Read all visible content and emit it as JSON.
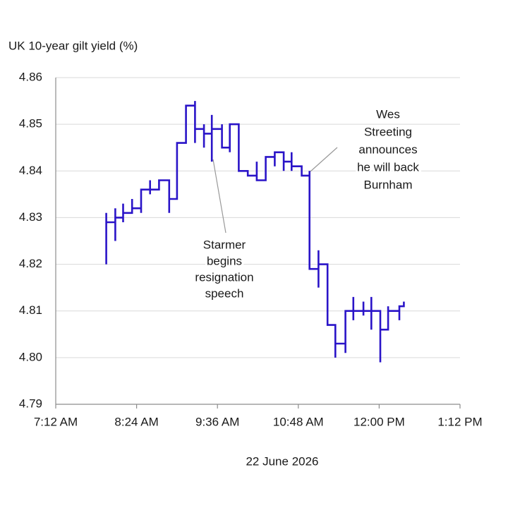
{
  "chart_data": {
    "type": "line",
    "title": "UK 10-year gilt yield (%)",
    "xlabel": "22 June 2026",
    "xlim": [
      432,
      792
    ],
    "xticks": [
      {
        "value": 432,
        "label": "7:12 AM"
      },
      {
        "value": 504,
        "label": "8:24 AM"
      },
      {
        "value": 576,
        "label": "9:36 AM"
      },
      {
        "value": 648,
        "label": "10:48 AM"
      },
      {
        "value": 720,
        "label": "12:00 PM"
      },
      {
        "value": 792,
        "label": "1:12 PM"
      }
    ],
    "ylim": [
      4.79,
      4.86
    ],
    "yticks": [
      4.79,
      {
        "value": 4.8,
        "label": "4.80"
      },
      4.81,
      4.82,
      4.83,
      4.84,
      4.85,
      4.86
    ],
    "grid": true,
    "x": [
      477,
      477,
      477,
      485,
      485,
      485,
      485,
      492,
      492,
      492,
      492,
      500,
      500,
      500,
      508,
      508,
      508,
      516,
      516,
      516,
      516,
      524,
      524,
      533,
      533,
      533,
      540,
      540,
      548,
      548,
      556,
      556,
      556,
      556,
      564,
      564,
      564,
      564,
      571,
      571,
      571,
      571,
      580,
      580,
      580,
      587,
      587,
      587,
      587,
      595,
      595,
      603,
      603,
      611,
      611,
      611,
      619,
      619,
      627,
      627,
      627,
      635,
      635,
      635,
      642,
      642,
      642,
      642,
      651,
      651,
      658,
      658,
      658,
      666,
      666,
      666,
      666,
      674,
      674,
      681,
      681,
      681,
      690,
      690,
      690,
      697,
      697,
      697,
      697,
      706,
      706,
      706,
      706,
      713,
      713,
      713,
      713,
      721,
      721,
      721,
      728,
      728,
      728,
      738,
      738,
      738,
      742,
      742
    ],
    "series": [
      {
        "color": "#2a14c8",
        "values": [
          4.82,
          4.831,
          4.829,
          4.829,
          4.825,
          4.832,
          4.83,
          4.83,
          4.829,
          4.833,
          4.831,
          4.831,
          4.834,
          4.832,
          4.832,
          4.831,
          4.836,
          4.836,
          4.835,
          4.838,
          4.836,
          4.836,
          4.838,
          4.838,
          4.831,
          4.834,
          4.834,
          4.846,
          4.846,
          4.854,
          4.854,
          4.855,
          4.846,
          4.849,
          4.849,
          4.845,
          4.85,
          4.848,
          4.848,
          4.852,
          4.842,
          4.849,
          4.849,
          4.85,
          4.845,
          4.845,
          4.849,
          4.844,
          4.85,
          4.85,
          4.84,
          4.84,
          4.839,
          4.839,
          4.842,
          4.838,
          4.838,
          4.843,
          4.843,
          4.841,
          4.844,
          4.844,
          4.84,
          4.842,
          4.842,
          4.844,
          4.84,
          4.841,
          4.841,
          4.839,
          4.839,
          4.84,
          4.819,
          4.819,
          4.823,
          4.815,
          4.82,
          4.82,
          4.807,
          4.807,
          4.8,
          4.803,
          4.803,
          4.801,
          4.81,
          4.81,
          4.813,
          4.808,
          4.81,
          4.81,
          4.812,
          4.809,
          4.81,
          4.81,
          4.813,
          4.806,
          4.81,
          4.81,
          4.799,
          4.806,
          4.806,
          4.811,
          4.81,
          4.81,
          4.808,
          4.811,
          4.811,
          4.812
        ]
      }
    ],
    "annotations": [
      {
        "lines": [
          "Starmer",
          "begins",
          "resignation",
          "speech"
        ]
      },
      {
        "lines": [
          "Wes",
          "Streeting",
          "announces",
          "he will back",
          "Burnham"
        ]
      }
    ]
  }
}
